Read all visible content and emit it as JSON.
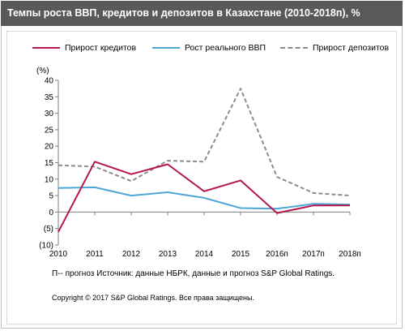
{
  "header": {
    "title": "Темпы роста ВВП, кредитов и депозитов в Казахстане (2010-2018п),  %"
  },
  "chart_data": {
    "type": "line",
    "ylabel": "(%)",
    "ylim": [
      -10,
      40
    ],
    "y_ticks": [
      "40",
      "35",
      "30",
      "25",
      "20",
      "15",
      "10",
      "5",
      "0",
      "(5)",
      "(10)"
    ],
    "y_tick_values": [
      40,
      35,
      30,
      25,
      20,
      15,
      10,
      5,
      0,
      -5,
      -10
    ],
    "categories": [
      "2010",
      "2011",
      "2012",
      "2013",
      "2014",
      "2015",
      "2016п",
      "2017п",
      "2018п"
    ],
    "grid": false,
    "legend_position": "top",
    "series": [
      {
        "name": "Прирост кредитов",
        "color": "#b5174b",
        "style": "solid",
        "values": [
          -6,
          15.3,
          11.5,
          14.5,
          6.3,
          9.6,
          -0.3,
          2,
          2
        ]
      },
      {
        "name": "Рост реального ВВП",
        "color": "#4fa6d6",
        "style": "solid",
        "values": [
          7.3,
          7.5,
          5,
          6,
          4.3,
          1.2,
          1,
          2.5,
          2.3
        ]
      },
      {
        "name": "Прирост депозитов",
        "color": "#8c8c8c",
        "style": "dashed",
        "values": [
          14.2,
          13.8,
          9.4,
          15.6,
          15.3,
          37.5,
          10.7,
          5.8,
          5
        ]
      }
    ]
  },
  "note": "П-- прогноз  Источник: данные НБРК, данные и прогноз S&P Global Ratings.",
  "copyright": "Copyright © 2017 S&P Global Ratings. Все права защищены."
}
